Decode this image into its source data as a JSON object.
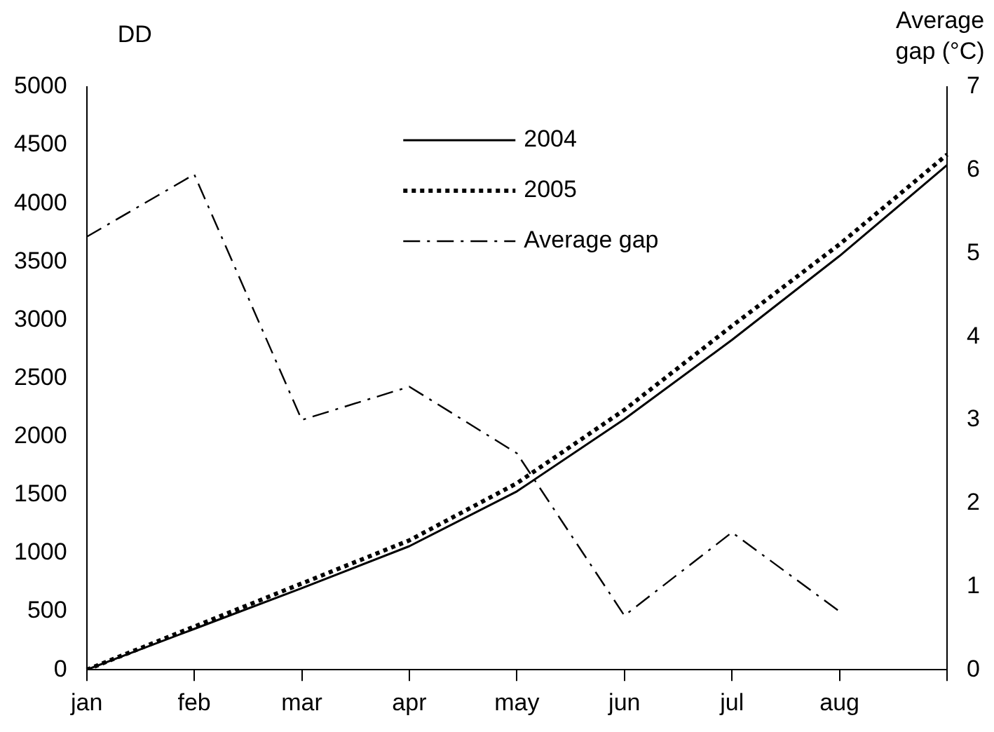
{
  "chart_data": {
    "type": "line",
    "ylabel": "DD",
    "y2label": "Average gap (°C)",
    "categories": [
      "jan",
      "feb",
      "mar",
      "apr",
      "may",
      "jun",
      "jul",
      "aug",
      null
    ],
    "ylim": [
      0,
      5000
    ],
    "yticks": [
      0,
      500,
      1000,
      1500,
      2000,
      2500,
      3000,
      3500,
      4000,
      4500,
      5000
    ],
    "y2lim": [
      0,
      7
    ],
    "y2ticks": [
      0,
      1,
      2,
      3,
      4,
      5,
      6,
      7
    ],
    "series": [
      {
        "name": "2004",
        "color": "#000000",
        "line_style": "solid",
        "values": [
          0,
          350,
          700,
          1060,
          1530,
          2150,
          2830,
          3550,
          4330
        ]
      },
      {
        "name": "2005",
        "color": "#000000",
        "line_style": "dotted",
        "values": [
          0,
          370,
          740,
          1110,
          1600,
          2230,
          2950,
          3650,
          4420
        ]
      },
      {
        "name": "Average gap",
        "color": "#000000",
        "line_style": "dashdot",
        "axis": "y2",
        "values": [
          5.2,
          5.95,
          3.0,
          3.4,
          2.6,
          0.65,
          1.65,
          0.7,
          null
        ]
      }
    ],
    "grid": false,
    "legend": "top",
    "marker": "none"
  }
}
